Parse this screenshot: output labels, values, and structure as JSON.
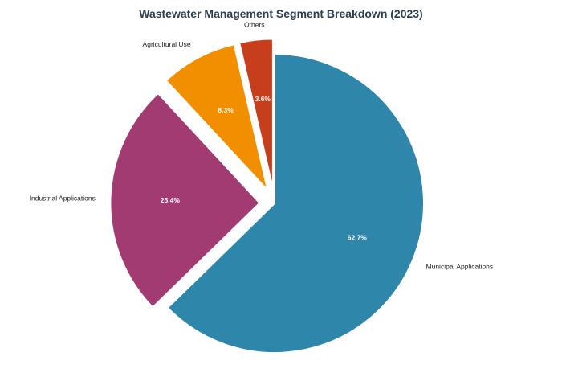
{
  "chart_data": {
    "type": "pie",
    "title": "Wastewater Management Segment Breakdown (2023)",
    "slices": [
      {
        "label": "Municipal Applications",
        "value": 62.7,
        "pct_label": "62.7%",
        "color": "#2e86ab",
        "exploded": false
      },
      {
        "label": "Industrial Applications",
        "value": 25.4,
        "pct_label": "25.4%",
        "color": "#a23b72",
        "exploded": true
      },
      {
        "label": "Agricultural Use",
        "value": 8.3,
        "pct_label": "8.3%",
        "color": "#f18f01",
        "exploded": true
      },
      {
        "label": "Others",
        "value": 3.6,
        "pct_label": "3.6%",
        "color": "#c73e1d",
        "exploded": true
      }
    ],
    "start_angle": "top",
    "direction": "clockwise",
    "legend": "none"
  }
}
